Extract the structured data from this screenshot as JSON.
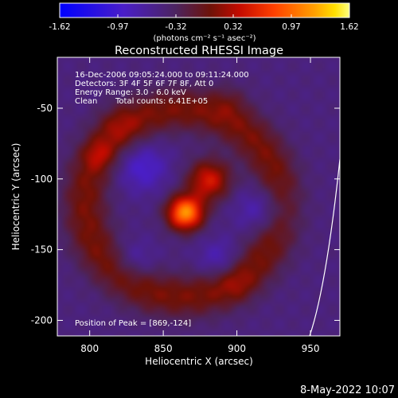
{
  "chart_data": {
    "type": "heatmap",
    "title": "Reconstructed RHESSI Image",
    "xlabel": "Heliocentric X (arcsec)",
    "ylabel": "Heliocentric Y (arcsec)",
    "xlim": [
      778,
      970
    ],
    "ylim": [
      -211,
      -14
    ],
    "x_ticks": [
      800,
      850,
      900,
      950
    ],
    "y_ticks": [
      -50,
      -100,
      -150,
      -200
    ],
    "colorbar": {
      "label": "(photons cm⁻² s⁻¹ asec⁻²)",
      "ticks": [
        -1.62,
        -0.97,
        -0.32,
        0.32,
        0.97,
        1.62
      ],
      "tick_labels": [
        "-1.62",
        "-0.97",
        "-0.32",
        "0.32",
        "0.97",
        "1.62"
      ],
      "range": [
        -1.62,
        1.62
      ]
    },
    "annotations": {
      "time_range": "16-Dec-2006 09:05:24.000 to 09:11:24.000",
      "detectors": "Detectors: 3F 4F 5F 6F 7F 8F, Att 0",
      "energy": "Energy Range: 3.0 - 6.0 keV",
      "clean": "Clean",
      "total_counts": "Total counts: 6.41E+05",
      "peak": "Position of Peak = [869,-124]"
    },
    "peak": {
      "x": 869,
      "y": -124
    },
    "footer": "8-May-2022 10:07",
    "components": [
      {
        "kind": "ring",
        "center": [
          863,
          -117
        ],
        "radius": 66,
        "width": 23,
        "amp": 0.58
      },
      {
        "kind": "blob",
        "center": [
          865,
          -124
        ],
        "sigma": 8.5,
        "amp": 1.62
      },
      {
        "kind": "blob",
        "center": [
          881,
          -101
        ],
        "sigma": 10,
        "amp": 0.95
      },
      {
        "kind": "blob",
        "center": [
          806,
          -83
        ],
        "sigma": 7,
        "amp": 0.32
      },
      {
        "kind": "blob",
        "center": [
          820,
          -62
        ],
        "sigma": 10,
        "amp": 0.22
      },
      {
        "kind": "blob",
        "center": [
          900,
          -175
        ],
        "sigma": 9,
        "amp": 0.2
      },
      {
        "kind": "blob",
        "center": [
          895,
          -45
        ],
        "sigma": 9,
        "amp": 0.2
      },
      {
        "kind": "hole",
        "center": [
          836,
          -92
        ],
        "sigma": 12,
        "amp": -0.45
      },
      {
        "kind": "hole",
        "center": [
          918,
          -122
        ],
        "sigma": 12,
        "amp": -0.45
      },
      {
        "kind": "hole",
        "center": [
          888,
          -157
        ],
        "sigma": 10,
        "amp": -0.35
      },
      {
        "kind": "hole",
        "center": [
          830,
          -158
        ],
        "sigma": 10,
        "amp": -0.3
      }
    ],
    "background_level": -0.48,
    "grid": false
  }
}
